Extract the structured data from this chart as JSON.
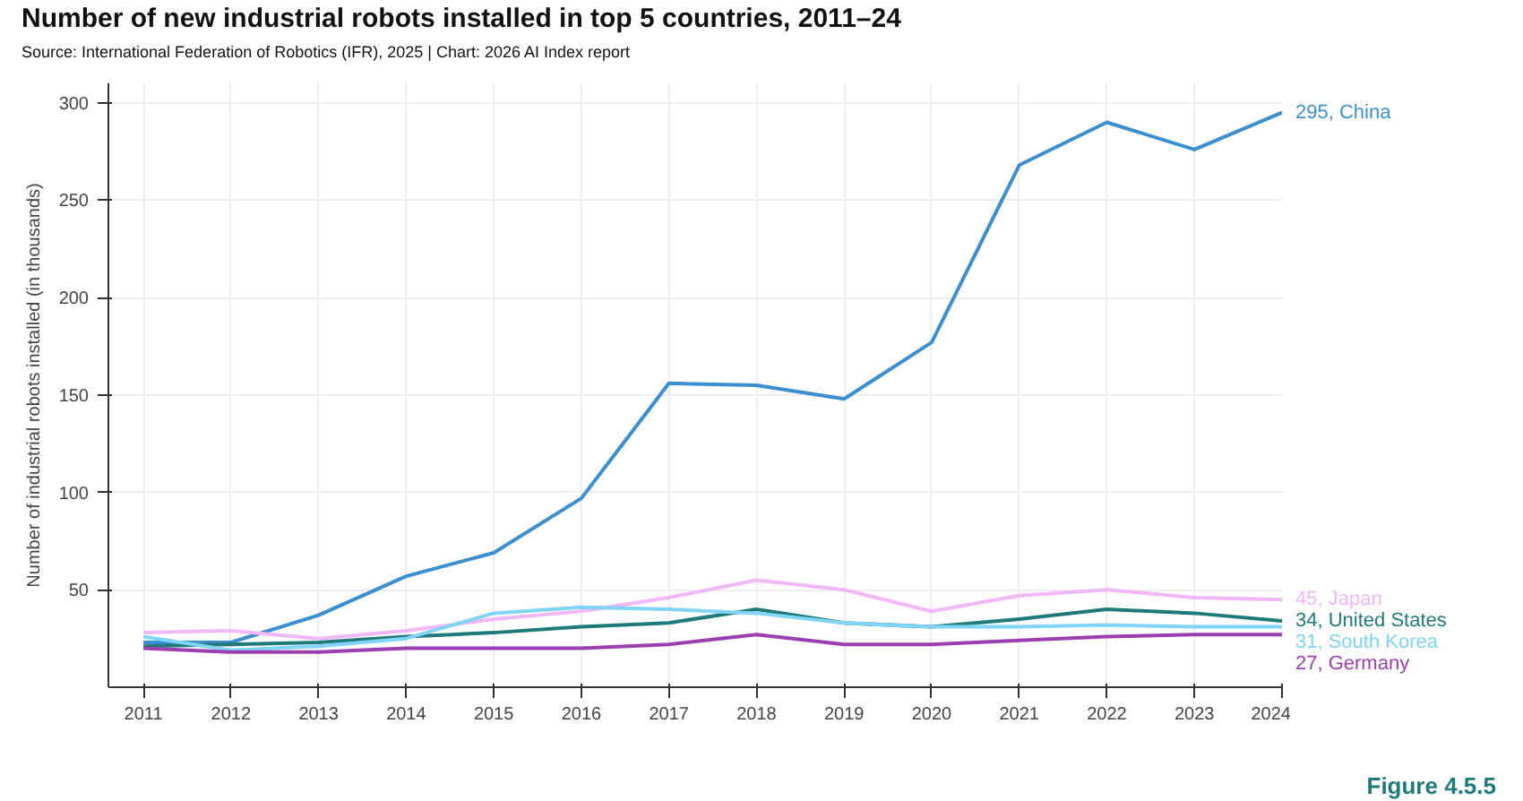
{
  "chart_data": {
    "type": "line",
    "title": "Number of new industrial robots installed in top 5 countries, 2011–24",
    "subtitle": "Source: International Federation of Robotics (IFR), 2025 | Chart: 2026 AI Index report",
    "ylabel": "Number of industrial robots installed (in thousands)",
    "x": [
      2011,
      2012,
      2013,
      2014,
      2015,
      2016,
      2017,
      2018,
      2019,
      2020,
      2021,
      2022,
      2023,
      2024
    ],
    "xlim": [
      2010.6,
      2024
    ],
    "xticks": [
      2011,
      2012,
      2013,
      2014,
      2015,
      2016,
      2017,
      2018,
      2019,
      2020,
      2021,
      2022,
      2023,
      2024
    ],
    "ylim": [
      0,
      310
    ],
    "yticks": [
      50,
      100,
      150,
      200,
      250,
      300
    ],
    "grid": true,
    "series": [
      {
        "name": "China",
        "color": "#3b8fd0",
        "values": [
          23,
          23,
          37,
          57,
          69,
          97,
          156,
          155,
          148,
          177,
          268,
          290,
          276,
          295
        ],
        "value_labels": [
          null,
          null,
          null,
          null,
          null,
          null,
          null,
          null,
          null,
          null,
          null,
          null,
          null,
          "295,"
        ]
      },
      {
        "name": "Japan",
        "color": "#f0b8f8",
        "values": [
          28,
          29,
          25,
          29,
          35,
          39,
          46,
          55,
          50,
          39,
          47,
          50,
          46,
          45
        ],
        "value_labels": [
          null,
          null,
          null,
          null,
          null,
          null,
          null,
          null,
          null,
          null,
          null,
          null,
          null,
          "45,"
        ]
      },
      {
        "name": "United States",
        "color": "#1f7a7a",
        "values": [
          21,
          22,
          23,
          26,
          28,
          31,
          33,
          40,
          33,
          31,
          35,
          40,
          38,
          34
        ],
        "value_labels": [
          null,
          null,
          null,
          null,
          null,
          null,
          null,
          null,
          null,
          null,
          null,
          null,
          null,
          "34,"
        ]
      },
      {
        "name": "South Korea",
        "color": "#80d4f5",
        "values": [
          26,
          19,
          21,
          25,
          38,
          41,
          40,
          38,
          33,
          31,
          31,
          32,
          31,
          31
        ],
        "value_labels": [
          null,
          null,
          null,
          null,
          null,
          null,
          null,
          null,
          null,
          null,
          null,
          null,
          null,
          "31,"
        ]
      },
      {
        "name": "Germany",
        "color": "#9b3fb0",
        "values": [
          20,
          18,
          18,
          20,
          20,
          20,
          22,
          27,
          22,
          22,
          24,
          26,
          27,
          27
        ],
        "value_labels": [
          null,
          null,
          null,
          null,
          null,
          null,
          null,
          null,
          null,
          null,
          null,
          null,
          null,
          "27,"
        ]
      }
    ],
    "annotations": [
      "Figure 4.5.5"
    ]
  }
}
